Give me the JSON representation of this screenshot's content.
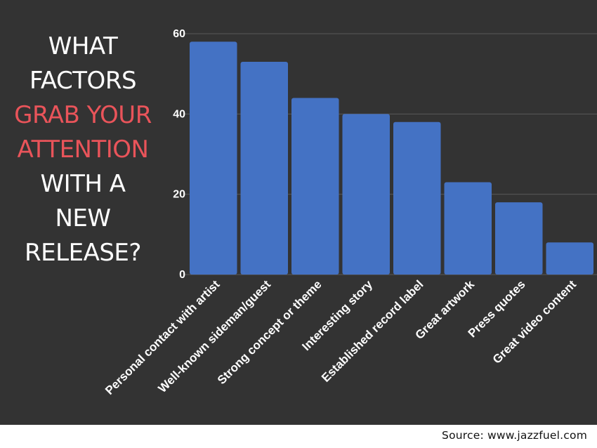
{
  "title": {
    "lines": [
      {
        "text": "WHAT",
        "highlight": false
      },
      {
        "text": "FACTORS",
        "highlight": false
      },
      {
        "text": "GRAB YOUR",
        "highlight": true
      },
      {
        "text": "ATTENTION",
        "highlight": true
      },
      {
        "text": "WITH A",
        "highlight": false
      },
      {
        "text": "NEW",
        "highlight": false
      },
      {
        "text": "RELEASE?",
        "highlight": false
      }
    ],
    "color": "#ffffff",
    "highlight_color": "#e9545a"
  },
  "chart_data": {
    "type": "bar",
    "categories": [
      "Personal contact with artist",
      "Well-known sideman/guest",
      "Strong concept or theme",
      "Interesting story",
      "Established record label",
      "Great artwork",
      "Press quotes",
      "Great video content"
    ],
    "values": [
      58,
      53,
      44,
      40,
      38,
      23,
      18,
      8
    ],
    "yticks": [
      "0",
      "20",
      "40",
      "60"
    ],
    "ylim": [
      0,
      60
    ],
    "grid": true,
    "bar_color": "#4472c4",
    "background": "#333333"
  },
  "source": "Source: www.jazzfuel.com"
}
